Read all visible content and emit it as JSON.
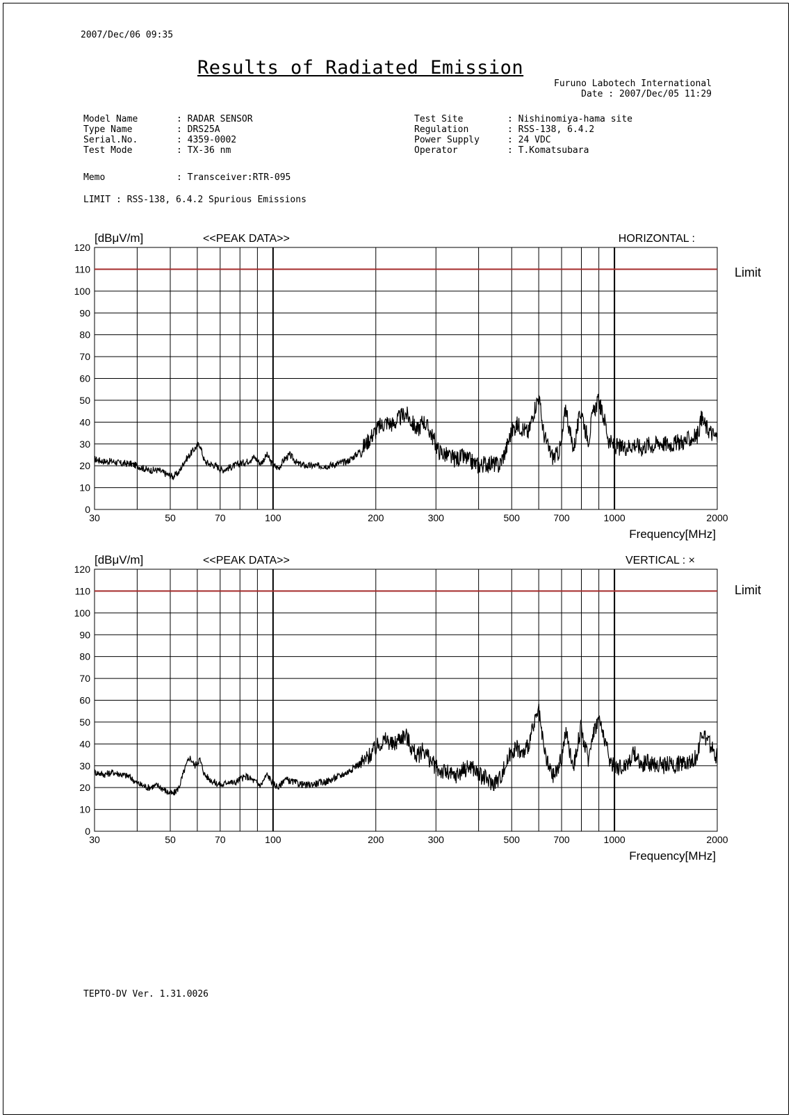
{
  "header": {
    "timestamp": "2007/Dec/06 09:35",
    "title": "Results of Radiated Emission",
    "company": "Furuno Labotech International",
    "date_line": "Date : 2007/Dec/05 11:29"
  },
  "info_left": [
    {
      "label": "Model Name",
      "value": ": RADAR SENSOR"
    },
    {
      "label": "Type Name",
      "value": ": DRS25A"
    },
    {
      "label": "Serial.No.",
      "value": ": 4359-0002"
    },
    {
      "label": "Test Mode",
      "value": ": TX-36 nm"
    }
  ],
  "info_right": [
    {
      "label": "Test Site",
      "value": ": Nishinomiya-hama site"
    },
    {
      "label": "Regulation",
      "value": ": RSS-138, 6.4.2"
    },
    {
      "label": "Power Supply",
      "value": ": 24 VDC"
    },
    {
      "label": "Operator",
      "value": ": T.Komatsubara"
    }
  ],
  "memo": {
    "label": "Memo",
    "value": ": Transceiver:RTR-095"
  },
  "limit_line": "LIMIT : RSS-138, 6.4.2 Spurious Emissions",
  "footer": "TEPTO-DV Ver. 1.31.0026",
  "colors": {
    "limit": "#a52a2a",
    "trace": "#000000",
    "grid": "#000000"
  },
  "chart_data": [
    {
      "type": "line",
      "unit_label": "[dBμV/m]",
      "data_label": "<<PEAK DATA>>",
      "polarization": "HORIZONTAL :",
      "xlabel": "Frequency[MHz]",
      "x_scale": "log",
      "xlim": [
        30,
        2000
      ],
      "ylim": [
        0,
        120
      ],
      "x_ticks": [
        30,
        50,
        70,
        100,
        200,
        300,
        500,
        700,
        1000,
        2000
      ],
      "y_ticks": [
        0,
        10,
        20,
        30,
        40,
        50,
        60,
        70,
        80,
        90,
        100,
        110,
        120
      ],
      "limit": {
        "label": "Limit",
        "value": 110
      },
      "series": [
        {
          "x": [
            30,
            32,
            34,
            36,
            38,
            40,
            43,
            46,
            49,
            51,
            53,
            55,
            57,
            59,
            61,
            63,
            65,
            68,
            71,
            74,
            77,
            80,
            84,
            88,
            92,
            96,
            100,
            104,
            108,
            112,
            118,
            125,
            135,
            145,
            155,
            165,
            175,
            185,
            195,
            205,
            215,
            225,
            235,
            245,
            255,
            265,
            275,
            290,
            305,
            320,
            340,
            360,
            380,
            400,
            420,
            440,
            460,
            480,
            500,
            520,
            540,
            560,
            580,
            600,
            620,
            640,
            660,
            680,
            700,
            720,
            740,
            760,
            780,
            800,
            820,
            840,
            860,
            880,
            900,
            920,
            940,
            960,
            980,
            1000,
            1050,
            1100,
            1150,
            1200,
            1250,
            1300,
            1350,
            1400,
            1450,
            1500,
            1550,
            1600,
            1650,
            1700,
            1750,
            1800,
            1850,
            1900,
            1950,
            2000
          ],
          "y": [
            23,
            22,
            22,
            21,
            21,
            20,
            18,
            18,
            16,
            15,
            17,
            22,
            25,
            28,
            30,
            22,
            21,
            20,
            18,
            19,
            20,
            21,
            22,
            24,
            21,
            25,
            20,
            19,
            23,
            25,
            21,
            20,
            20,
            20,
            21,
            22,
            25,
            29,
            34,
            38,
            40,
            39,
            42,
            44,
            40,
            36,
            41,
            35,
            27,
            25,
            23,
            24,
            22,
            20,
            21,
            21,
            20,
            27,
            36,
            39,
            37,
            35,
            45,
            52,
            35,
            28,
            24,
            25,
            30,
            48,
            35,
            28,
            38,
            46,
            37,
            32,
            42,
            47,
            50,
            44,
            40,
            32,
            30,
            29,
            28,
            29,
            30,
            28,
            30,
            29,
            31,
            30,
            30,
            30,
            31,
            31,
            32,
            33,
            34,
            42,
            38,
            36,
            34,
            33
          ]
        }
      ]
    },
    {
      "type": "line",
      "unit_label": "[dBμV/m]",
      "data_label": "<<PEAK DATA>>",
      "polarization": "VERTICAL : ×",
      "xlabel": "Frequency[MHz]",
      "x_scale": "log",
      "xlim": [
        30,
        2000
      ],
      "ylim": [
        0,
        120
      ],
      "x_ticks": [
        30,
        50,
        70,
        100,
        200,
        300,
        500,
        700,
        1000,
        2000
      ],
      "y_ticks": [
        0,
        10,
        20,
        30,
        40,
        50,
        60,
        70,
        80,
        90,
        100,
        110,
        120
      ],
      "limit": {
        "label": "Limit",
        "value": 110
      },
      "series": [
        {
          "x": [
            30,
            32,
            34,
            36,
            38,
            40,
            43,
            46,
            49,
            51,
            53,
            55,
            57,
            59,
            61,
            63,
            65,
            68,
            71,
            74,
            77,
            80,
            84,
            88,
            92,
            96,
            100,
            104,
            108,
            112,
            118,
            125,
            135,
            145,
            155,
            165,
            175,
            185,
            195,
            205,
            215,
            225,
            235,
            245,
            255,
            265,
            275,
            290,
            305,
            320,
            340,
            360,
            380,
            400,
            420,
            440,
            460,
            480,
            500,
            520,
            540,
            560,
            580,
            600,
            620,
            640,
            660,
            680,
            700,
            720,
            740,
            760,
            780,
            800,
            820,
            840,
            860,
            880,
            900,
            920,
            940,
            960,
            980,
            1000,
            1050,
            1100,
            1150,
            1200,
            1250,
            1300,
            1350,
            1400,
            1450,
            1500,
            1550,
            1600,
            1650,
            1700,
            1750,
            1800,
            1850,
            1900,
            1950,
            2000
          ],
          "y": [
            27,
            26,
            27,
            26,
            25,
            22,
            20,
            21,
            18,
            17,
            20,
            28,
            34,
            30,
            33,
            26,
            24,
            22,
            21,
            23,
            22,
            24,
            25,
            23,
            21,
            26,
            22,
            20,
            24,
            23,
            22,
            21,
            22,
            23,
            25,
            27,
            30,
            32,
            36,
            40,
            42,
            39,
            43,
            44,
            38,
            34,
            38,
            32,
            28,
            27,
            25,
            28,
            30,
            26,
            24,
            22,
            24,
            30,
            37,
            38,
            35,
            40,
            48,
            55,
            38,
            30,
            25,
            28,
            33,
            46,
            36,
            30,
            40,
            48,
            38,
            33,
            44,
            48,
            52,
            46,
            42,
            34,
            31,
            30,
            29,
            32,
            36,
            30,
            32,
            30,
            31,
            30,
            31,
            30,
            31,
            32,
            32,
            33,
            34,
            46,
            42,
            40,
            36,
            34
          ]
        }
      ]
    }
  ]
}
